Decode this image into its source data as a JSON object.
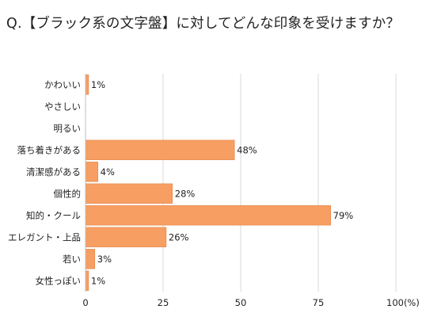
{
  "title": "Q.【ブラック系の文字盤】に対してどんな印象を受けますか？",
  "chart_data": {
    "type": "bar",
    "orientation": "horizontal",
    "categories": [
      "かわいい",
      "やさしい",
      "明るい",
      "落ち着きがある",
      "清潔感がある",
      "個性的",
      "知的・クール",
      "エレガント・上品",
      "若い",
      "女性っぽい"
    ],
    "values": [
      1,
      0,
      0,
      48,
      4,
      28,
      79,
      26,
      3,
      1
    ],
    "value_labels": [
      "1%",
      "",
      "",
      "48%",
      "4%",
      "28%",
      "79%",
      "26%",
      "3%",
      "1%"
    ],
    "xlim": [
      0,
      100
    ],
    "x_ticks": [
      0,
      25,
      50,
      75,
      100
    ],
    "x_tick_labels": [
      "0",
      "25",
      "50",
      "75",
      "100(%)"
    ],
    "grid": true,
    "bar_color": "#F79E62",
    "bar_edge_color": "#E0854A",
    "grid_color": "#D9D9D9"
  }
}
